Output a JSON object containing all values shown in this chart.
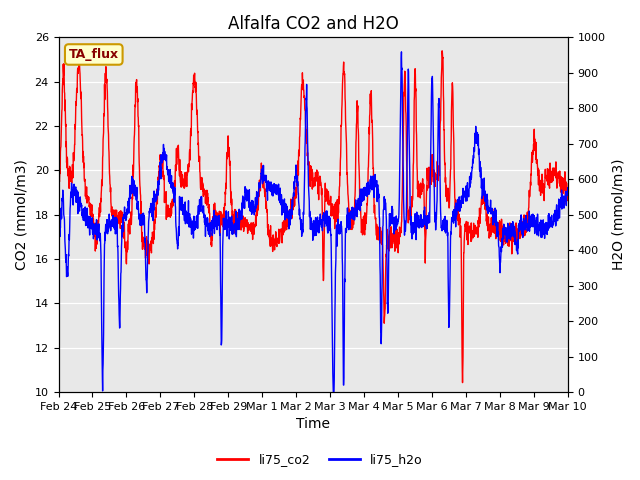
{
  "title": "Alfalfa CO2 and H2O",
  "xlabel": "Time",
  "ylabel_left": "CO2 (mmol/m3)",
  "ylabel_right": "H2O (mmol/m3)",
  "ylim_left": [
    10,
    26
  ],
  "ylim_right": [
    0,
    1000
  ],
  "yticks_left": [
    10,
    12,
    14,
    16,
    18,
    20,
    22,
    24,
    26
  ],
  "yticks_right": [
    0,
    100,
    200,
    300,
    400,
    500,
    600,
    700,
    800,
    900,
    1000
  ],
  "xtick_labels": [
    "Feb 24",
    "Feb 25",
    "Feb 26",
    "Feb 27",
    "Feb 28",
    "Feb 29",
    "Mar 1",
    "Mar 2",
    "Mar 3",
    "Mar 4",
    "Mar 5",
    "Mar 6",
    "Mar 7",
    "Mar 8",
    "Mar 9",
    "Mar 10"
  ],
  "legend_labels": [
    "li75_co2",
    "li75_h2o"
  ],
  "legend_colors": [
    "red",
    "blue"
  ],
  "annotation_text": "TA_flux",
  "annotation_bg": "#ffffcc",
  "annotation_border": "#cc9900",
  "background_color": "#e8e8e8",
  "line_width": 1.0,
  "title_fontsize": 12,
  "axis_label_fontsize": 10,
  "tick_fontsize": 8
}
